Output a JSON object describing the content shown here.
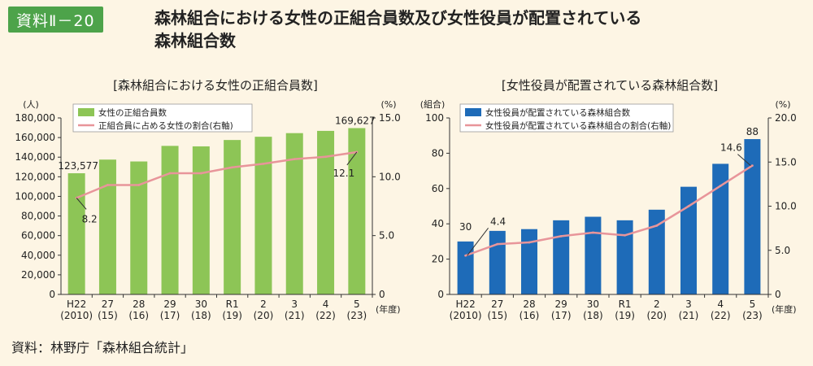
{
  "header": {
    "badge": "資料Ⅱ－20",
    "title_line1": "森林組合における女性の正組合員数及び女性役員が配置されている",
    "title_line2": "森林組合数"
  },
  "source": "資料：林野庁「森林組合統計」",
  "chart_data": [
    {
      "type": "bar",
      "title": "[森林組合における女性の正組合員数]",
      "categories": [
        [
          "H22",
          "(2010)"
        ],
        [
          "27",
          "(15)"
        ],
        [
          "28",
          "(16)"
        ],
        [
          "29",
          "(17)"
        ],
        [
          "30",
          "(18)"
        ],
        [
          "R1",
          "(19)"
        ],
        [
          "2",
          "(20)"
        ],
        [
          "3",
          "(21)"
        ],
        [
          "4",
          "(22)"
        ],
        [
          "5",
          "(23)"
        ]
      ],
      "x_unit": "(年度)",
      "y_left_unit": "(人)",
      "y_right_unit": "(%)",
      "y_left_ticks": [
        "0",
        "20,000",
        "40,000",
        "60,000",
        "80,000",
        "100,000",
        "120,000",
        "140,000",
        "160,000",
        "180,000"
      ],
      "y_right_ticks": [
        "0",
        "5.0",
        "10.0",
        "15.0"
      ],
      "ylim_left": [
        0,
        180000
      ],
      "ylim_right": [
        0,
        15
      ],
      "series": [
        {
          "name": "女性の正組合員数",
          "type": "bar",
          "axis": "left",
          "color": "#8dc556",
          "values": [
            123577,
            137500,
            135600,
            151500,
            151000,
            157500,
            160800,
            164500,
            166800,
            169627
          ]
        },
        {
          "name": "正組合員に占める女性の割合(右軸)",
          "type": "line",
          "axis": "right",
          "color": "#e8959a",
          "values": [
            8.2,
            9.3,
            9.3,
            10.3,
            10.3,
            10.8,
            11.1,
            11.5,
            11.7,
            12.1
          ]
        }
      ],
      "data_labels": [
        {
          "series": 0,
          "index": 0,
          "text": "123,577"
        },
        {
          "series": 0,
          "index": 9,
          "text": "169,627"
        },
        {
          "series": 1,
          "index": 0,
          "text": "8.2"
        },
        {
          "series": 1,
          "index": 9,
          "text": "12.1"
        }
      ]
    },
    {
      "type": "bar",
      "title": "[女性役員が配置されている森林組合数]",
      "categories": [
        [
          "H22",
          "(2010)"
        ],
        [
          "27",
          "(15)"
        ],
        [
          "28",
          "(16)"
        ],
        [
          "29",
          "(17)"
        ],
        [
          "30",
          "(18)"
        ],
        [
          "R1",
          "(19)"
        ],
        [
          "2",
          "(20)"
        ],
        [
          "3",
          "(21)"
        ],
        [
          "4",
          "(22)"
        ],
        [
          "5",
          "(23)"
        ]
      ],
      "x_unit": "(年度)",
      "y_left_unit": "(組合)",
      "y_right_unit": "(%)",
      "y_left_ticks": [
        "0",
        "20",
        "40",
        "60",
        "80",
        "100"
      ],
      "y_right_ticks": [
        "0",
        "5.0",
        "10.0",
        "15.0",
        "20.0"
      ],
      "ylim_left": [
        0,
        100
      ],
      "ylim_right": [
        0,
        20
      ],
      "series": [
        {
          "name": "女性役員が配置されている森林組合数",
          "type": "bar",
          "axis": "left",
          "color": "#1e6bb8",
          "values": [
            30,
            36,
            37,
            42,
            44,
            42,
            48,
            61,
            74,
            88
          ]
        },
        {
          "name": "女性役員が配置されている森林組合の割合(右軸)",
          "type": "line",
          "axis": "right",
          "color": "#e8959a",
          "values": [
            4.4,
            5.7,
            5.9,
            6.6,
            7.0,
            6.7,
            7.8,
            10.0,
            12.3,
            14.6
          ]
        }
      ],
      "data_labels": [
        {
          "series": 0,
          "index": 0,
          "text": "30"
        },
        {
          "series": 0,
          "index": 9,
          "text": "88"
        },
        {
          "series": 1,
          "index": 0,
          "text": "4.4"
        },
        {
          "series": 1,
          "index": 9,
          "text": "14.6"
        }
      ]
    }
  ]
}
